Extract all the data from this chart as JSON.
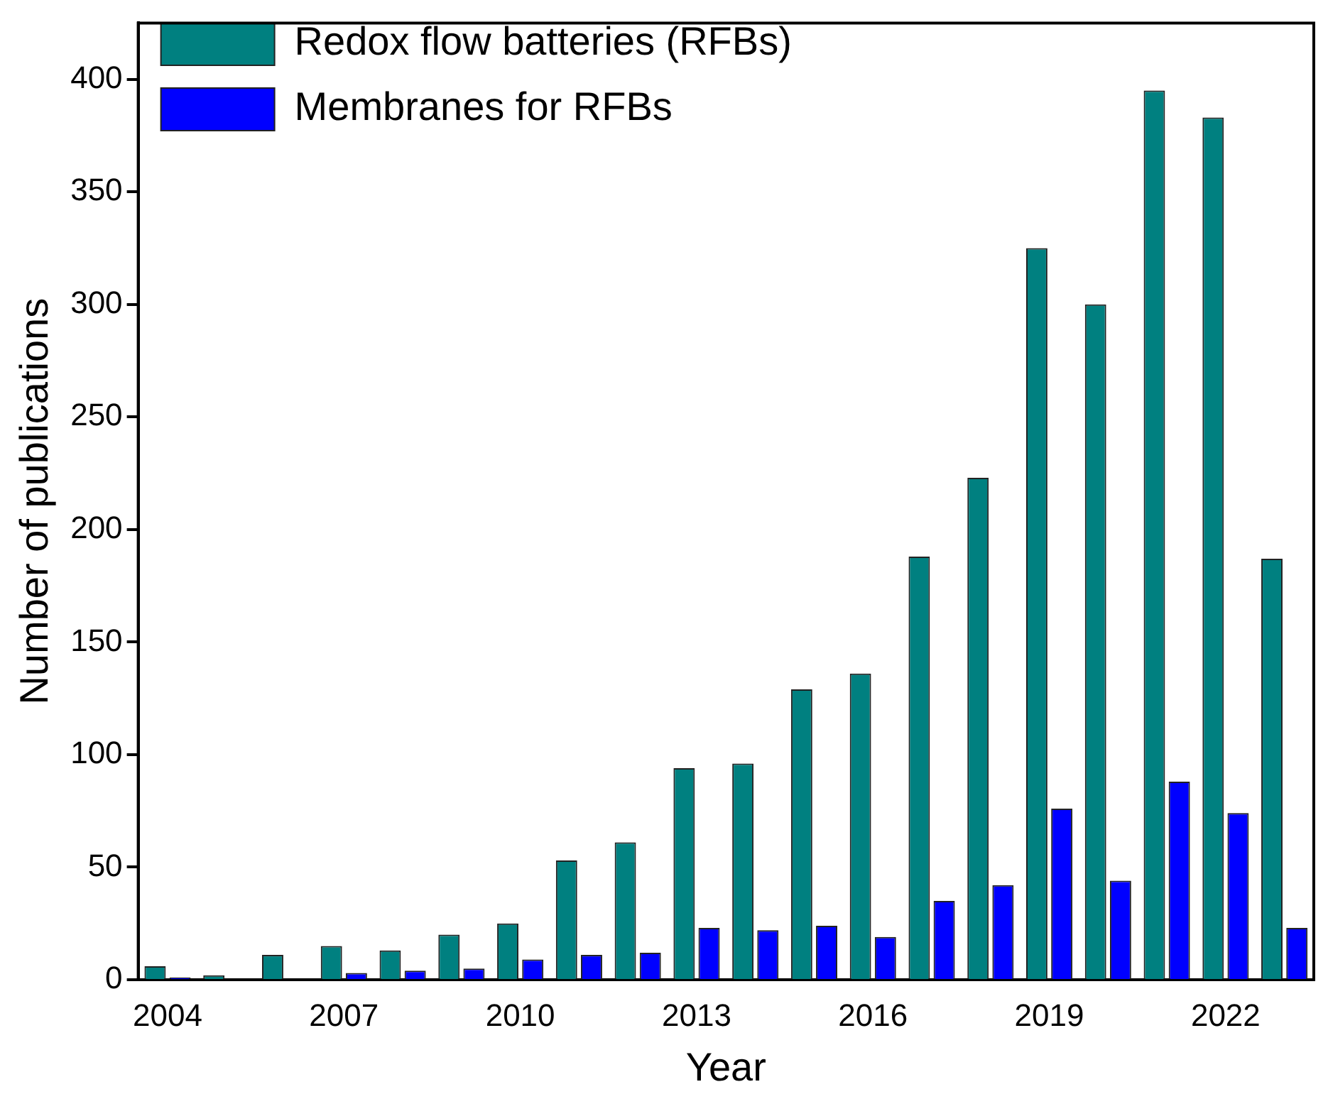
{
  "chart_data": {
    "type": "bar",
    "xlabel": "Year",
    "ylabel": "Number of publications",
    "categories": [
      "2004",
      null,
      null,
      "2007",
      null,
      null,
      "2010",
      null,
      null,
      "2013",
      null,
      null,
      "2016",
      null,
      null,
      "2019",
      null,
      null,
      "2022",
      null
    ],
    "series": [
      {
        "name": "Redox flow batteries (RFBs)",
        "color": "#008080",
        "values": [
          6,
          2,
          11,
          15,
          13,
          20,
          25,
          53,
          61,
          94,
          96,
          129,
          136,
          188,
          223,
          325,
          300,
          395,
          383,
          187
        ]
      },
      {
        "name": "Membranes for RFBs",
        "color": "#0000ff",
        "values": [
          1,
          0,
          0,
          3,
          4,
          5,
          9,
          11,
          12,
          23,
          22,
          24,
          19,
          35,
          42,
          76,
          44,
          88,
          74,
          23
        ]
      }
    ],
    "ylim": [
      0,
      425
    ],
    "yticks": [
      0,
      50,
      100,
      150,
      200,
      250,
      300,
      350,
      400
    ],
    "grid": false,
    "legend": "top left"
  }
}
